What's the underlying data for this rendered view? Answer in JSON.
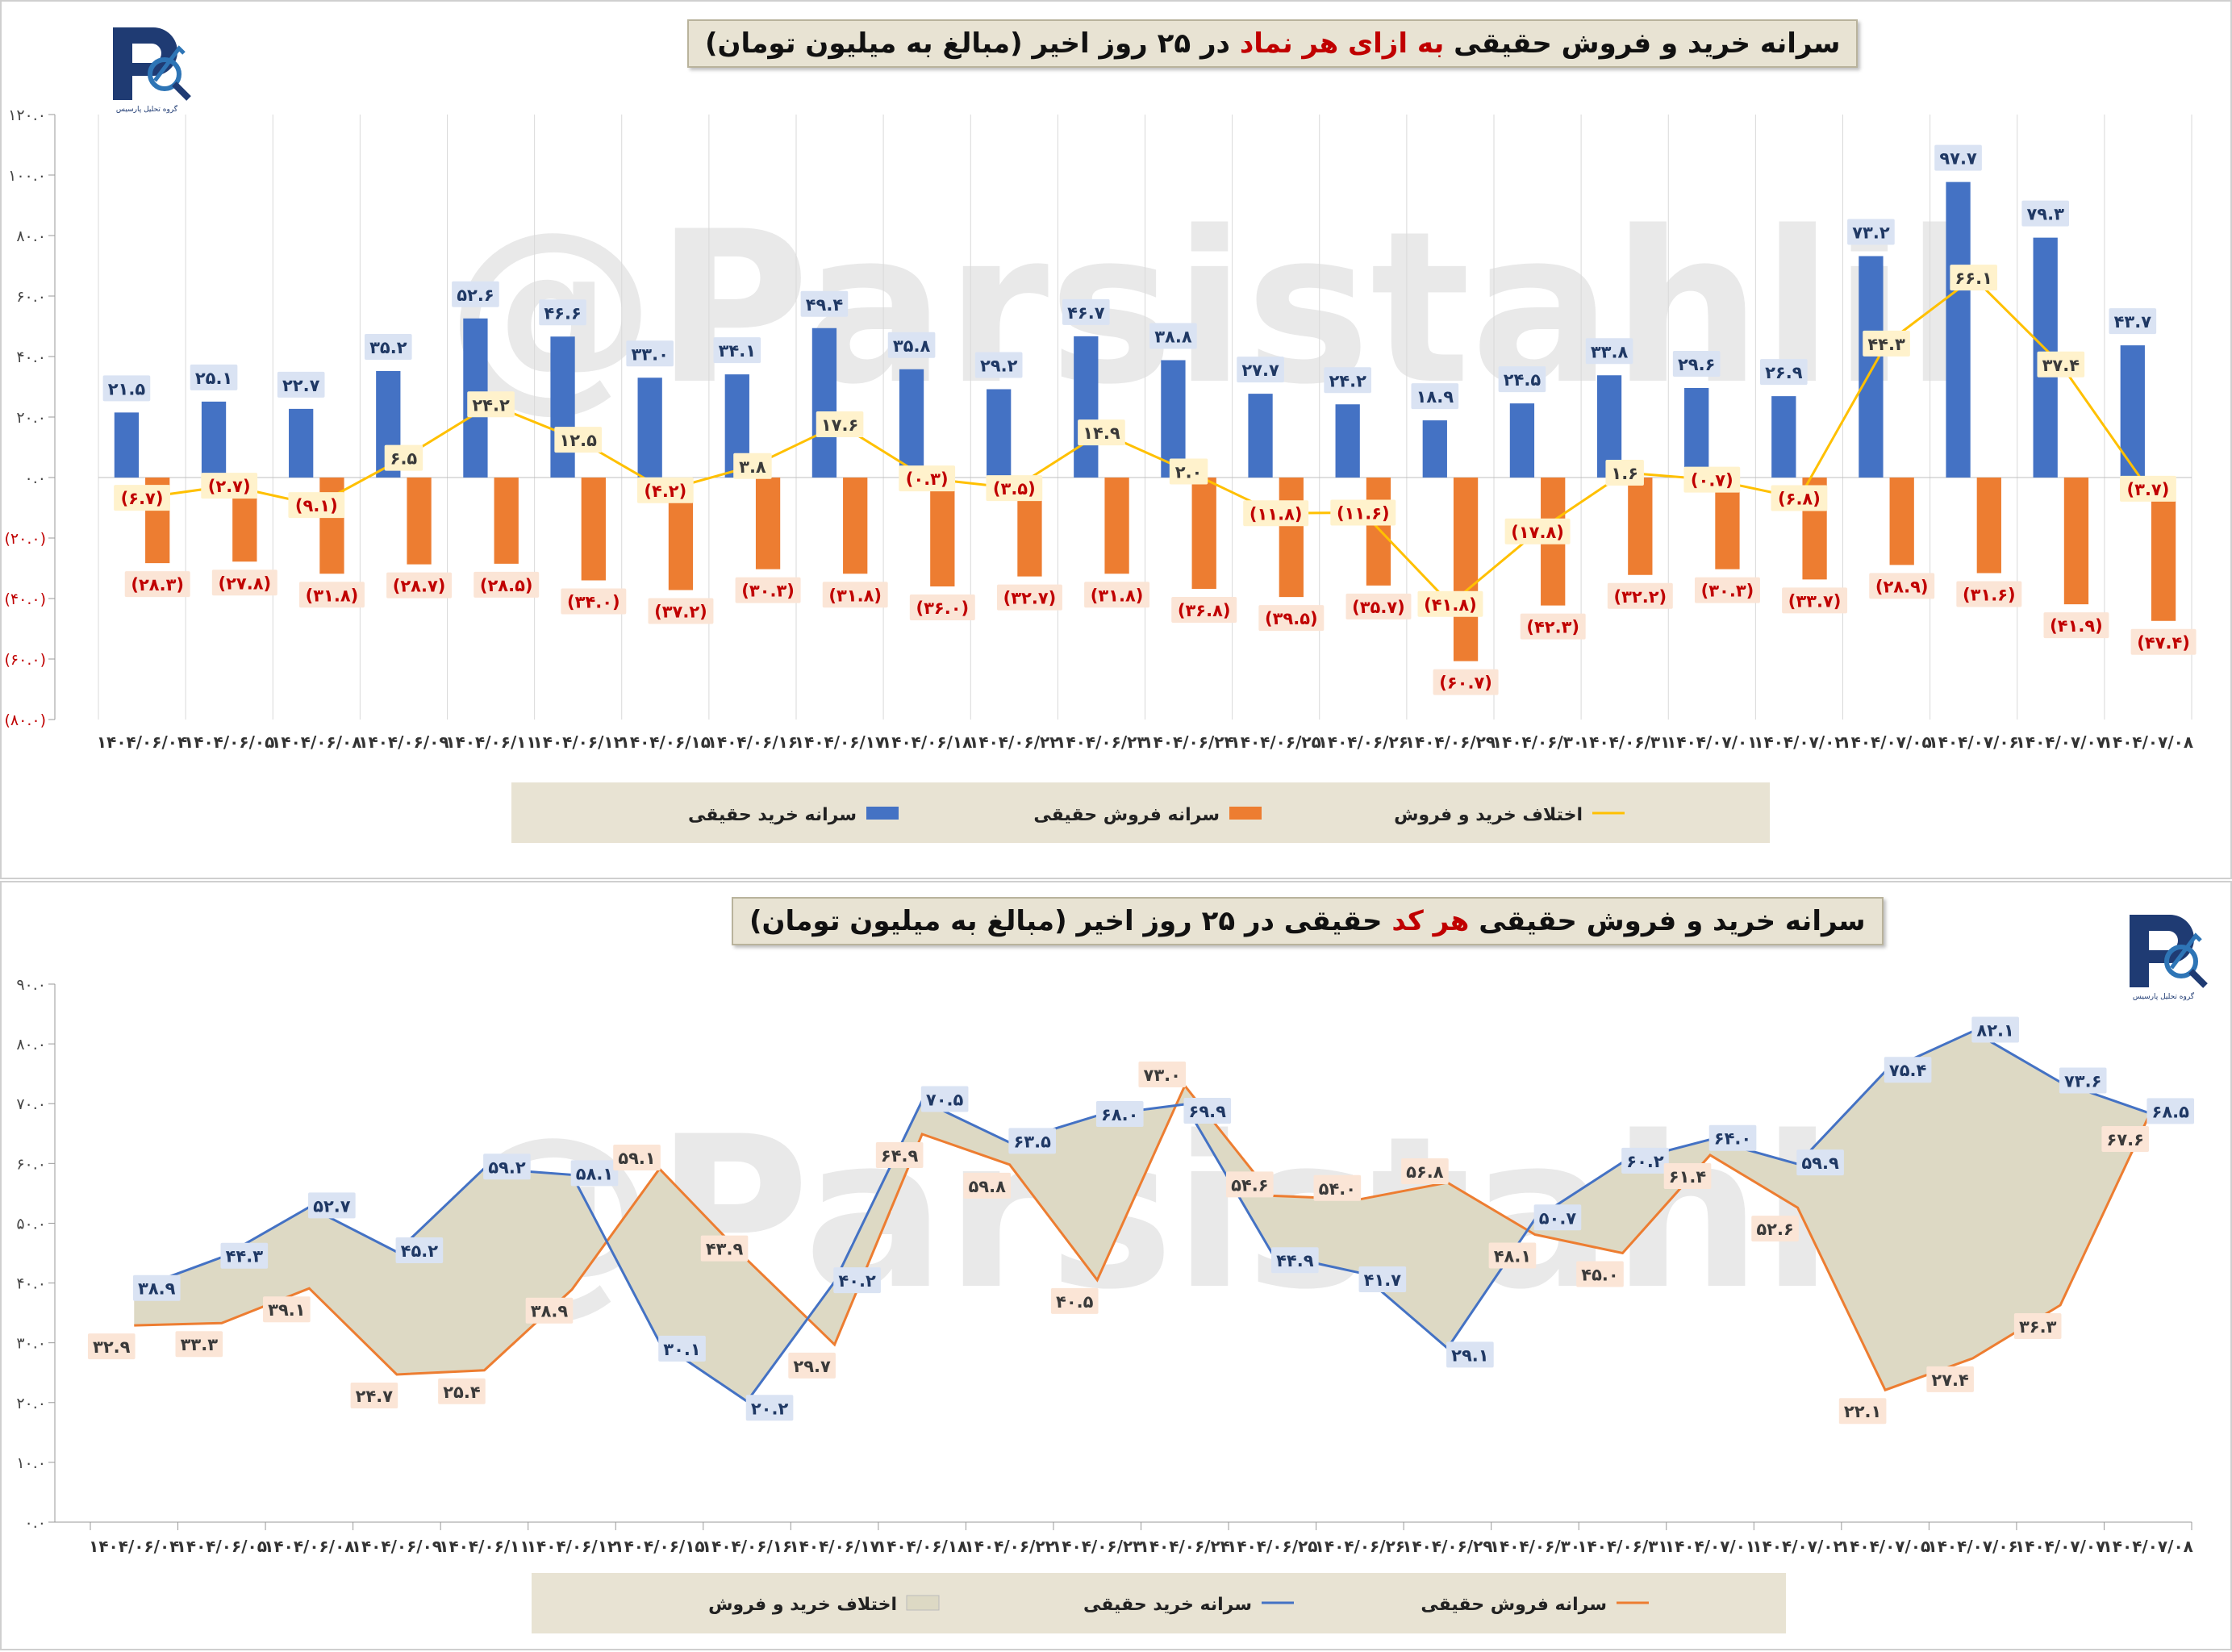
{
  "chart_data": [
    {
      "type": "bar",
      "title_parts": [
        "سرانه خرید و فروش حقیقی",
        "به ازای هر نماد",
        "در ۲۵ روز اخیر (مبالغ به میلیون تومان)"
      ],
      "categories": [
        "۱۴۰۴/۰۶/۰۴",
        "۱۴۰۴/۰۶/۰۵",
        "۱۴۰۴/۰۶/۰۸",
        "۱۴۰۴/۰۶/۰۹",
        "۱۴۰۴/۰۶/۱۱",
        "۱۴۰۴/۰۶/۱۲",
        "۱۴۰۴/۰۶/۱۵",
        "۱۴۰۴/۰۶/۱۶",
        "۱۴۰۴/۰۶/۱۷",
        "۱۴۰۴/۰۶/۱۸",
        "۱۴۰۴/۰۶/۲۲",
        "۱۴۰۴/۰۶/۲۳",
        "۱۴۰۴/۰۶/۲۴",
        "۱۴۰۴/۰۶/۲۵",
        "۱۴۰۴/۰۶/۲۶",
        "۱۴۰۴/۰۶/۲۹",
        "۱۴۰۴/۰۶/۳۰",
        "۱۴۰۴/۰۶/۳۱",
        "۱۴۰۴/۰۷/۰۱",
        "۱۴۰۴/۰۷/۰۲",
        "۱۴۰۴/۰۷/۰۵",
        "۱۴۰۴/۰۷/۰۶",
        "۱۴۰۴/۰۷/۰۷",
        "۱۴۰۴/۰۷/۰۸"
      ],
      "series": [
        {
          "name": "سرانه خرید حقیقی",
          "color": "#4472c4",
          "values": [
            21.5,
            25.1,
            22.7,
            35.2,
            52.6,
            46.6,
            33.0,
            34.1,
            49.4,
            35.8,
            29.2,
            46.7,
            38.8,
            27.7,
            24.2,
            18.9,
            24.5,
            33.8,
            29.6,
            26.9,
            73.2,
            97.7,
            79.3,
            43.7
          ],
          "labels": [
            "۲۱.۵",
            "۲۵.۱",
            "۲۲.۷",
            "۳۵.۲",
            "۵۲.۶",
            "۴۶.۶",
            "۳۳.۰",
            "۳۴.۱",
            "۴۹.۴",
            "۳۵.۸",
            "۲۹.۲",
            "۴۶.۷",
            "۳۸.۸",
            "۲۷.۷",
            "۲۴.۲",
            "۱۸.۹",
            "۲۴.۵",
            "۳۳.۸",
            "۲۹.۶",
            "۲۶.۹",
            "۷۳.۲",
            "۹۷.۷",
            "۷۹.۳",
            "۴۳.۷"
          ]
        },
        {
          "name": "سرانه فروش حقیقی",
          "color": "#ed7d31",
          "values": [
            -28.3,
            -27.8,
            -31.8,
            -28.7,
            -28.5,
            -34.0,
            -37.2,
            -30.3,
            -31.8,
            -36.0,
            -32.7,
            -31.8,
            -36.8,
            -39.5,
            -35.7,
            -60.7,
            -42.3,
            -32.2,
            -30.3,
            -33.7,
            -28.9,
            -31.6,
            -41.9,
            -47.4
          ],
          "labels": [
            "(۲۸.۳)",
            "(۲۷.۸)",
            "(۳۱.۸)",
            "(۲۸.۷)",
            "(۲۸.۵)",
            "(۳۴.۰)",
            "(۳۷.۲)",
            "(۳۰.۳)",
            "(۳۱.۸)",
            "(۳۶.۰)",
            "(۳۲.۷)",
            "(۳۱.۸)",
            "(۳۶.۸)",
            "(۳۹.۵)",
            "(۳۵.۷)",
            "(۶۰.۷)",
            "(۴۲.۳)",
            "(۳۲.۲)",
            "(۳۰.۳)",
            "(۳۳.۷)",
            "(۲۸.۹)",
            "(۳۱.۶)",
            "(۴۱.۹)",
            "(۴۷.۴)"
          ]
        },
        {
          "name": "اختلاف خرید و فروش",
          "color": "#ffc000",
          "values": [
            -6.7,
            -2.7,
            -9.1,
            6.5,
            24.2,
            12.5,
            -4.2,
            3.8,
            17.6,
            -0.3,
            -3.5,
            14.9,
            2.0,
            -11.8,
            -11.6,
            -41.8,
            -17.8,
            1.6,
            -0.7,
            -6.8,
            44.3,
            66.1,
            37.4,
            -3.7
          ],
          "labels": [
            "(۶.۷)",
            "(۲.۷)",
            "(۹.۱)",
            "۶.۵",
            "۲۴.۲",
            "۱۲.۵",
            "(۴.۲)",
            "۳.۸",
            "۱۷.۶",
            "(۰.۳)",
            "(۳.۵)",
            "۱۴.۹",
            "۲.۰",
            "(۱۱.۸)",
            "(۱۱.۶)",
            "(۴۱.۸)",
            "(۱۷.۸)",
            "۱.۶",
            "(۰.۷)",
            "(۶.۸)",
            "۴۴.۳",
            "۶۶.۱",
            "۳۷.۴",
            "(۳.۷)"
          ]
        }
      ],
      "ylim": [
        -80,
        120
      ],
      "yticks": [
        120,
        100,
        80,
        60,
        40,
        20,
        0,
        -20,
        -40,
        -60,
        -80
      ],
      "ytick_labels": [
        "۱۲۰.۰",
        "۱۰۰.۰",
        "۸۰.۰",
        "۶۰.۰",
        "۴۰.۰",
        "۲۰.۰",
        "۰.۰",
        "(۲۰.۰)",
        "(۴۰.۰)",
        "(۶۰.۰)",
        "(۸۰.۰)"
      ],
      "legend": [
        "سرانه خرید حقیقی",
        "سرانه فروش حقیقی",
        "اختلاف خرید و فروش"
      ],
      "watermark": "@Parsistahlil"
    },
    {
      "type": "line",
      "title_parts": [
        "سرانه خرید و فروش حقیقی",
        "هر کد",
        "حقیقی در ۲۵ روز اخیر (مبالغ به میلیون تومان)"
      ],
      "categories": [
        "۱۴۰۴/۰۶/۰۴",
        "۱۴۰۴/۰۶/۰۵",
        "۱۴۰۴/۰۶/۰۸",
        "۱۴۰۴/۰۶/۰۹",
        "۱۴۰۴/۰۶/۱۱",
        "۱۴۰۴/۰۶/۱۲",
        "۱۴۰۴/۰۶/۱۵",
        "۱۴۰۴/۰۶/۱۶",
        "۱۴۰۴/۰۶/۱۷",
        "۱۴۰۴/۰۶/۱۸",
        "۱۴۰۴/۰۶/۲۲",
        "۱۴۰۴/۰۶/۲۳",
        "۱۴۰۴/۰۶/۲۴",
        "۱۴۰۴/۰۶/۲۵",
        "۱۴۰۴/۰۶/۲۶",
        "۱۴۰۴/۰۶/۲۹",
        "۱۴۰۴/۰۶/۳۰",
        "۱۴۰۴/۰۶/۳۱",
        "۱۴۰۴/۰۷/۰۱",
        "۱۴۰۴/۰۷/۰۲",
        "۱۴۰۴/۰۷/۰۵",
        "۱۴۰۴/۰۷/۰۶",
        "۱۴۰۴/۰۷/۰۷",
        "۱۴۰۴/۰۷/۰۸"
      ],
      "series": [
        {
          "name": "سرانه خرید حقیقی",
          "color": "#4472c4",
          "values": [
            38.9,
            44.3,
            52.7,
            45.2,
            59.2,
            58.1,
            30.1,
            20.2,
            40.2,
            70.5,
            63.5,
            68.0,
            69.9,
            44.9,
            41.7,
            29.1,
            50.7,
            60.2,
            64.0,
            59.9,
            75.4,
            82.1,
            73.6,
            68.5
          ],
          "labels": [
            "۳۸.۹",
            "۴۴.۳",
            "۵۲.۷",
            "۴۵.۲",
            "۵۹.۲",
            "۵۸.۱",
            "۳۰.۱",
            "۲۰.۲",
            "۴۰.۲",
            "۷۰.۵",
            "۶۳.۵",
            "۶۸.۰",
            "۶۹.۹",
            "۴۴.۹",
            "۴۱.۷",
            "۲۹.۱",
            "۵۰.۷",
            "۶۰.۲",
            "۶۴.۰",
            "۵۹.۹",
            "۷۵.۴",
            "۸۲.۱",
            "۷۳.۶",
            "۶۸.۵"
          ]
        },
        {
          "name": "سرانه فروش حقیقی",
          "color": "#ed7d31",
          "values": [
            32.9,
            33.3,
            39.1,
            24.7,
            25.4,
            38.9,
            59.1,
            43.9,
            29.7,
            64.9,
            59.8,
            40.5,
            73.0,
            54.6,
            54.0,
            56.8,
            48.1,
            45.0,
            61.4,
            52.6,
            22.1,
            27.4,
            36.3,
            67.6
          ],
          "labels": [
            "۳۲.۹",
            "۳۳.۳",
            "۳۹.۱",
            "۲۴.۷",
            "۲۵.۴",
            "۳۸.۹",
            "۵۹.۱",
            "۴۳.۹",
            "۲۹.۷",
            "۶۴.۹",
            "۵۹.۸",
            "۴۰.۵",
            "۷۳.۰",
            "۵۴.۶",
            "۵۴.۰",
            "۵۶.۸",
            "۴۸.۱",
            "۴۵.۰",
            "۶۱.۴",
            "۵۲.۶",
            "۲۲.۱",
            "۲۷.۴",
            "۳۶.۳",
            "۶۷.۶"
          ]
        }
      ],
      "fill_name": "اختلاف خرید و فروش",
      "fill_color": "#ddd9c4",
      "ylim": [
        0,
        90
      ],
      "yticks": [
        90,
        80,
        70,
        60,
        50,
        40,
        30,
        20,
        10,
        0
      ],
      "ytick_labels": [
        "۹۰.۰",
        "۸۰.۰",
        "۷۰.۰",
        "۶۰.۰",
        "۵۰.۰",
        "۴۰.۰",
        "۳۰.۰",
        "۲۰.۰",
        "۱۰.۰",
        "۰.۰"
      ],
      "legend": [
        "اختلاف خرید و فروش",
        "سرانه خرید حقیقی",
        "سرانه فروش حقیقی"
      ],
      "watermark": "@Parsistahlil"
    }
  ],
  "logo": {
    "caption": "گروه تحلیل پارسیس"
  }
}
